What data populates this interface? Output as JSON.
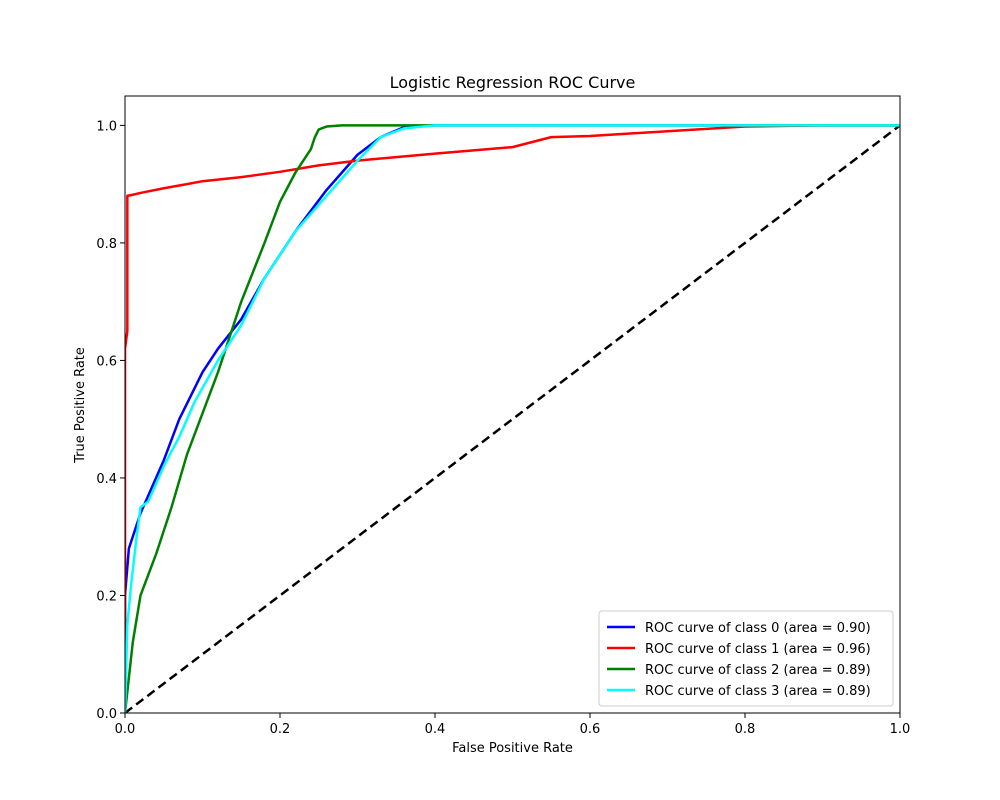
{
  "chart_data": {
    "type": "line",
    "title": "Logistic Regression ROC Curve",
    "xlabel": "False Positive Rate",
    "ylabel": "True Positive Rate",
    "xlim": [
      0.0,
      1.0
    ],
    "ylim": [
      0.0,
      1.05
    ],
    "xticks": [
      "0.0",
      "0.2",
      "0.4",
      "0.6",
      "0.8",
      "1.0"
    ],
    "yticks": [
      "0.0",
      "0.2",
      "0.4",
      "0.6",
      "0.8",
      "1.0"
    ],
    "grid": false,
    "legend_position": "lower right",
    "series": [
      {
        "name": "ROC curve of class 0 (area = 0.90)",
        "color": "#0000ff",
        "x": [
          0.0,
          0.0,
          0.005,
          0.01,
          0.02,
          0.03,
          0.05,
          0.07,
          0.085,
          0.1,
          0.12,
          0.15,
          0.18,
          0.22,
          0.26,
          0.3,
          0.33,
          0.36,
          0.4,
          0.5,
          0.6,
          0.8,
          1.0
        ],
        "y": [
          0.0,
          0.2,
          0.28,
          0.3,
          0.34,
          0.37,
          0.43,
          0.5,
          0.54,
          0.58,
          0.62,
          0.67,
          0.74,
          0.82,
          0.89,
          0.95,
          0.98,
          0.997,
          1.0,
          1.0,
          1.0,
          1.0,
          1.0
        ]
      },
      {
        "name": "ROC curve of class 1 (area = 0.96)",
        "color": "#ff0000",
        "x": [
          0.0,
          0.0,
          0.003,
          0.003,
          0.01,
          0.02,
          0.05,
          0.08,
          0.1,
          0.15,
          0.2,
          0.25,
          0.3,
          0.4,
          0.5,
          0.55,
          0.6,
          0.7,
          0.8,
          0.9,
          1.0
        ],
        "y": [
          0.0,
          0.62,
          0.65,
          0.88,
          0.882,
          0.885,
          0.893,
          0.9,
          0.905,
          0.912,
          0.921,
          0.932,
          0.94,
          0.952,
          0.963,
          0.98,
          0.982,
          0.99,
          0.998,
          1.0,
          1.0
        ]
      },
      {
        "name": "ROC curve of class 2 (area = 0.89)",
        "color": "#008000",
        "x": [
          0.0,
          0.005,
          0.01,
          0.02,
          0.04,
          0.06,
          0.08,
          0.1,
          0.12,
          0.15,
          0.18,
          0.2,
          0.22,
          0.23,
          0.24,
          0.245,
          0.25,
          0.26,
          0.28,
          0.3,
          0.4,
          0.6,
          0.8,
          1.0
        ],
        "y": [
          0.0,
          0.06,
          0.12,
          0.2,
          0.27,
          0.35,
          0.44,
          0.51,
          0.58,
          0.7,
          0.8,
          0.87,
          0.92,
          0.94,
          0.96,
          0.98,
          0.993,
          0.998,
          1.0,
          1.0,
          1.0,
          1.0,
          1.0,
          1.0
        ]
      },
      {
        "name": "ROC curve of class 3 (area = 0.89)",
        "color": "#00ffff",
        "x": [
          0.0,
          0.003,
          0.008,
          0.015,
          0.02,
          0.03,
          0.05,
          0.07,
          0.09,
          0.12,
          0.15,
          0.18,
          0.22,
          0.26,
          0.3,
          0.33,
          0.36,
          0.4,
          0.6,
          0.8,
          1.0
        ],
        "y": [
          0.0,
          0.15,
          0.22,
          0.3,
          0.35,
          0.36,
          0.42,
          0.47,
          0.53,
          0.6,
          0.66,
          0.74,
          0.82,
          0.88,
          0.94,
          0.98,
          0.995,
          1.0,
          1.0,
          1.0,
          1.0
        ]
      }
    ],
    "reference_line": {
      "x": [
        0.0,
        1.0
      ],
      "y": [
        0.0,
        1.0
      ],
      "color": "#000000",
      "style": "dashed"
    }
  }
}
